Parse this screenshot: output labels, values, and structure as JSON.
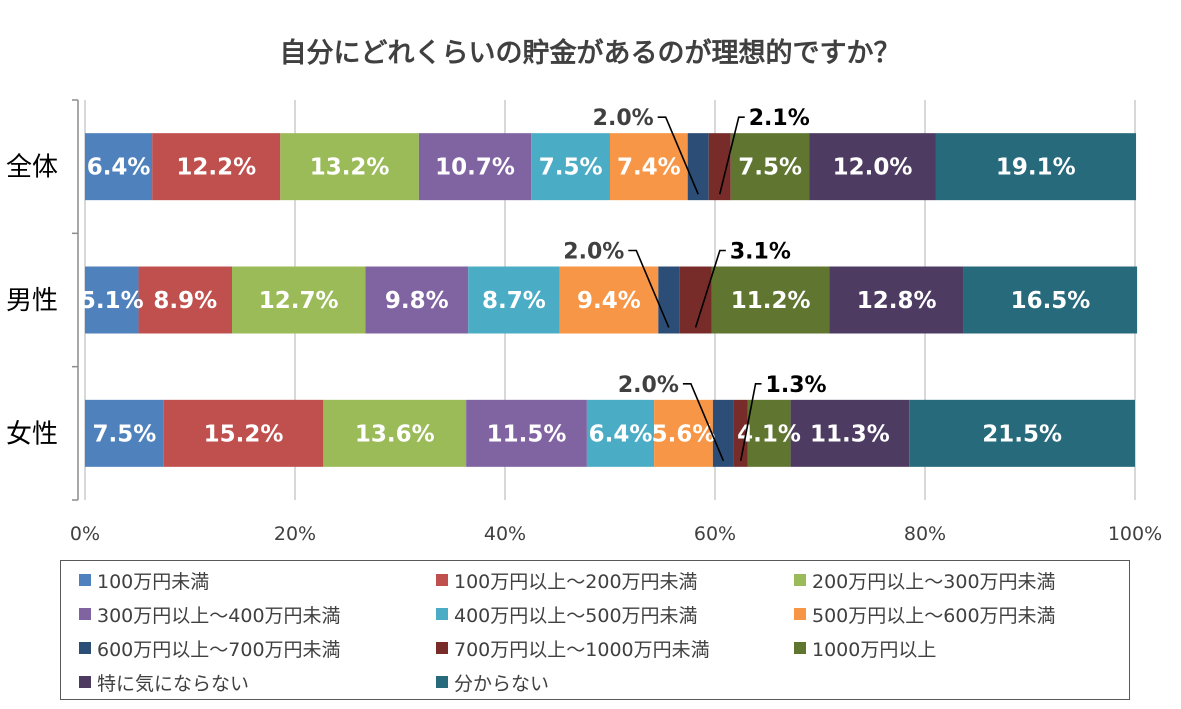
{
  "chart_data": {
    "type": "bar",
    "orientation": "horizontal",
    "stacked": "percent",
    "title": "自分にどれくらいの貯金があるのが理想的ですか？",
    "categories": [
      "全体",
      "男性",
      "女性"
    ],
    "xlim": [
      0,
      100
    ],
    "x_ticks": [
      "0%",
      "20%",
      "40%",
      "60%",
      "80%",
      "100%"
    ],
    "series": [
      {
        "name": "100万円未満",
        "color": "#4F81BD",
        "values": [
          6.4,
          5.1,
          7.5
        ],
        "labels": [
          "6.4%",
          "5.1%",
          "7.5%"
        ]
      },
      {
        "name": "100万円以上～200万円未満",
        "color": "#C0504D",
        "values": [
          12.2,
          8.9,
          15.2
        ],
        "labels": [
          "12.2%",
          "8.9%",
          "15.2%"
        ]
      },
      {
        "name": "200万円以上～300万円未満",
        "color": "#9BBB59",
        "values": [
          13.2,
          12.7,
          13.6
        ],
        "labels": [
          "13.2%",
          "12.7%",
          "13.6%"
        ]
      },
      {
        "name": "300万円以上～400万円未満",
        "color": "#8064A2",
        "values": [
          10.7,
          9.8,
          11.5
        ],
        "labels": [
          "10.7%",
          "9.8%",
          "11.5%"
        ]
      },
      {
        "name": "400万円以上～500万円未満",
        "color": "#4BACC6",
        "values": [
          7.5,
          8.7,
          6.4
        ],
        "labels": [
          "7.5%",
          "8.7%",
          "6.4%"
        ]
      },
      {
        "name": "500万円以上～600万円未満",
        "color": "#F79646",
        "values": [
          7.4,
          9.4,
          5.6
        ],
        "labels": [
          "7.4%",
          "9.4%",
          "5.6%"
        ]
      },
      {
        "name": "600万円以上～700万円未満",
        "color": "#2C4D75",
        "values": [
          2.0,
          2.0,
          2.0
        ],
        "labels": [
          "2.0%",
          "2.0%",
          "2.0%"
        ]
      },
      {
        "name": "700万円以上～1000万円未満",
        "color": "#772C2A",
        "values": [
          2.1,
          3.1,
          1.3
        ],
        "labels": [
          "2.1%",
          "3.1%",
          "1.3%"
        ]
      },
      {
        "name": "1000万円以上",
        "color": "#5F7530",
        "values": [
          7.5,
          11.2,
          4.1
        ],
        "labels": [
          "7.5%",
          "11.2%",
          "4.1%"
        ]
      },
      {
        "name": "特に気にならない",
        "color": "#4D3B62",
        "values": [
          12.0,
          12.8,
          11.3
        ],
        "labels": [
          "12.0%",
          "12.8%",
          "11.3%"
        ]
      },
      {
        "name": "分からない",
        "color": "#276A7C",
        "values": [
          19.1,
          16.5,
          21.5
        ],
        "labels": [
          "19.1%",
          "16.5%",
          "21.5%"
        ]
      }
    ],
    "callout_series": [
      "600万円以上～700万円未満",
      "700万円以上～1000万円未満"
    ],
    "legend_position": "bottom",
    "grid": true
  }
}
